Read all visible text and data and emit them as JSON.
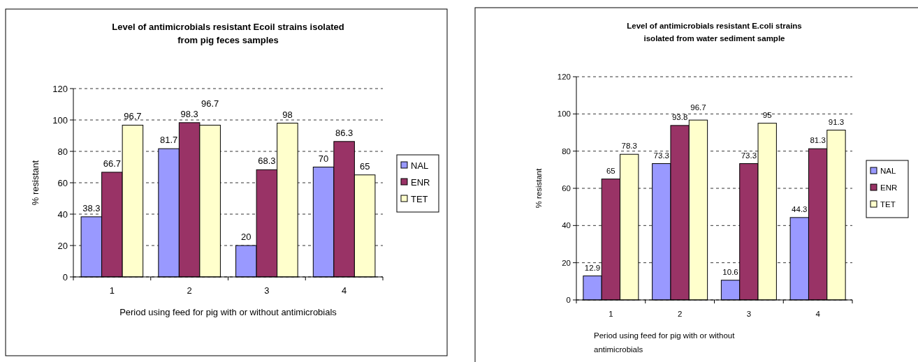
{
  "chart_data": [
    {
      "type": "bar",
      "title": "Level of antimicrobials resistant Ecoil strains isolated from pig feces samples",
      "xlabel": "Period using feed for pig with or without antimicrobials",
      "ylabel": "% resistant",
      "categories": [
        "1",
        "2",
        "3",
        "4"
      ],
      "series": [
        {
          "name": "NAL",
          "color": "#9999ff",
          "values": [
            38.3,
            81.7,
            20,
            70
          ]
        },
        {
          "name": "ENR",
          "color": "#993366",
          "values": [
            66.7,
            98.3,
            68.3,
            86.3
          ]
        },
        {
          "name": "TET",
          "color": "#ffffcc",
          "values": [
            96.7,
            96.7,
            98,
            65
          ]
        }
      ],
      "ylim": [
        0,
        120
      ],
      "yticks": [
        0,
        20,
        40,
        60,
        80,
        100,
        120
      ],
      "grid": "y",
      "legend": "right",
      "data_labels": true
    },
    {
      "type": "bar",
      "title": "Level of antimicrobials resistant E.coli strains isolated from water sediment sample",
      "xlabel": "Period using feed for pig with or without antimicrobials",
      "ylabel": "% resistant",
      "categories": [
        "1",
        "2",
        "3",
        "4"
      ],
      "series": [
        {
          "name": "NAL",
          "color": "#9999ff",
          "values": [
            12.9,
            73.3,
            10.6,
            44.3
          ]
        },
        {
          "name": "ENR",
          "color": "#993366",
          "values": [
            65,
            93.8,
            73.3,
            81.3
          ]
        },
        {
          "name": "TET",
          "color": "#ffffcc",
          "values": [
            78.3,
            96.7,
            95,
            91.3
          ]
        }
      ],
      "ylim": [
        0,
        120
      ],
      "yticks": [
        0,
        20,
        40,
        60,
        80,
        100,
        120
      ],
      "grid": "y",
      "legend": "right",
      "data_labels": true
    }
  ]
}
